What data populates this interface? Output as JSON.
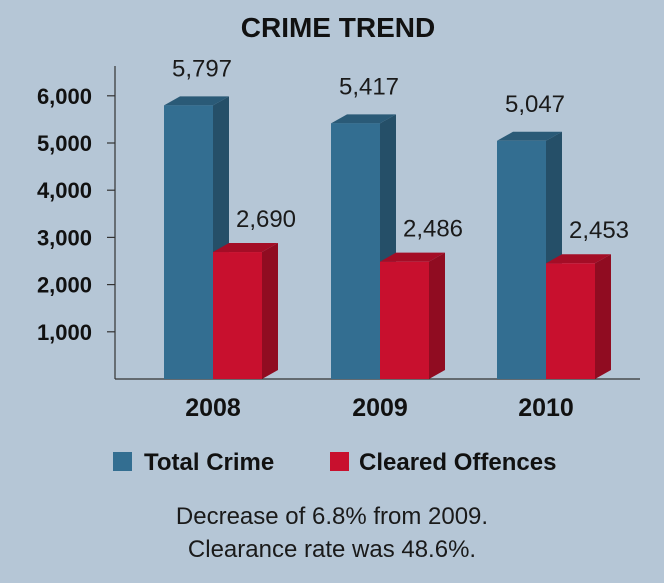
{
  "chart_data": {
    "type": "bar",
    "title": "CRIME TREND",
    "categories": [
      "2008",
      "2009",
      "2010"
    ],
    "series": [
      {
        "name": "Total Crime",
        "values": [
          5797,
          5417,
          5047
        ],
        "labels": [
          "5,797",
          "5,417",
          "5,047"
        ],
        "color": "#336e91"
      },
      {
        "name": "Cleared Offences",
        "values": [
          2690,
          2486,
          2453
        ],
        "labels": [
          "2,690",
          "2,486",
          "2,453"
        ],
        "color": "#c8102e"
      }
    ],
    "yticks": [
      1000,
      2000,
      3000,
      4000,
      5000,
      6000
    ],
    "ytick_labels": [
      "1,000",
      "2,000",
      "3,000",
      "4,000",
      "5,000",
      "6,000"
    ],
    "ylim": [
      0,
      6800
    ],
    "grid": false,
    "legend_position": "bottom"
  },
  "caption": {
    "line1": "Decrease of 6.8% from 2009.",
    "line2": "Clearance rate was 48.6%."
  }
}
